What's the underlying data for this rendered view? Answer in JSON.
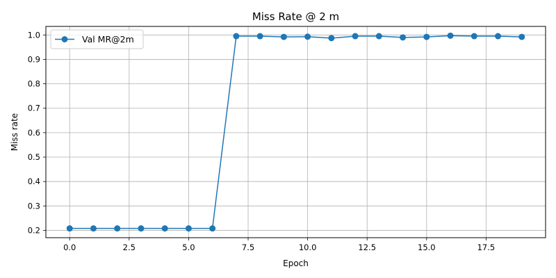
{
  "chart_data": {
    "type": "line",
    "title": "Miss Rate @ 2 m",
    "xlabel": "Epoch",
    "ylabel": "Miss rate",
    "xlim": [
      -1.0,
      20.0
    ],
    "ylim": [
      0.17,
      1.035
    ],
    "xticks": [
      0.0,
      2.5,
      5.0,
      7.5,
      10.0,
      12.5,
      15.0,
      17.5
    ],
    "xtick_labels": [
      "0.0",
      "2.5",
      "5.0",
      "7.5",
      "10.0",
      "12.5",
      "15.0",
      "17.5"
    ],
    "yticks": [
      0.2,
      0.3,
      0.4,
      0.5,
      0.6,
      0.7,
      0.8,
      0.9,
      1.0
    ],
    "ytick_labels": [
      "0.2",
      "0.3",
      "0.4",
      "0.5",
      "0.6",
      "0.7",
      "0.8",
      "0.9",
      "1.0"
    ],
    "grid": true,
    "legend_position": "upper-left",
    "series": [
      {
        "name": "Val MR@2m",
        "color": "#1f77b4",
        "marker": "circle",
        "x": [
          0,
          1,
          2,
          3,
          4,
          5,
          6,
          7,
          8,
          9,
          10,
          11,
          12,
          13,
          14,
          15,
          16,
          17,
          18,
          19
        ],
        "y": [
          0.208,
          0.208,
          0.208,
          0.208,
          0.208,
          0.208,
          0.208,
          0.995,
          0.995,
          0.992,
          0.993,
          0.987,
          0.995,
          0.995,
          0.99,
          0.992,
          0.997,
          0.995,
          0.995,
          0.992
        ]
      }
    ]
  }
}
